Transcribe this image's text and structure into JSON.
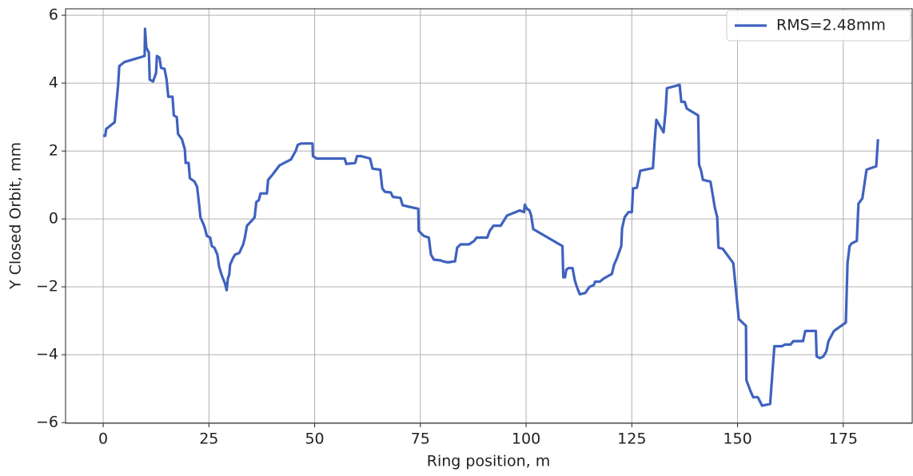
{
  "chart_data": {
    "type": "line",
    "xlabel": "Ring position, m",
    "ylabel": "Y Closed Orbit, mm",
    "xlim": [
      -8.9,
      191.3
    ],
    "ylim": [
      -6.02,
      6.19
    ],
    "xticks": [
      0,
      25,
      50,
      75,
      100,
      125,
      150,
      175
    ],
    "yticks": [
      {
        "value": -6,
        "label": "−6"
      },
      {
        "value": -4,
        "label": "−4"
      },
      {
        "value": -2,
        "label": "−2"
      },
      0,
      2,
      4,
      6
    ],
    "grid": true,
    "legend": "upper right",
    "x": [
      0,
      0.5,
      0.7,
      2.7,
      3.5,
      3.8,
      5,
      9.8,
      9.9,
      10.2,
      10.8,
      11,
      11.8,
      12.5,
      12.7,
      13.3,
      13.7,
      14.5,
      15,
      15.4,
      16.4,
      16.7,
      17.4,
      17.7,
      18.6,
      19.3,
      19.5,
      20.2,
      20.5,
      21.6,
      22.2,
      22.7,
      23,
      23.7,
      24,
      24.5,
      25.3,
      25.7,
      26.3,
      27,
      27.4,
      28,
      28.8,
      29.2,
      29.5,
      29.8,
      30,
      30.7,
      31.2,
      32.2,
      33.1,
      33.5,
      34,
      35.5,
      35.8,
      36.2,
      36.8,
      37.2,
      38.7,
      39,
      40,
      41.7,
      42.8,
      44.4,
      45.5,
      46,
      46.8,
      49.5,
      49.6,
      50.5,
      57.1,
      57.5,
      59.6,
      60,
      61,
      63.1,
      63.7,
      65.5,
      66,
      66.6,
      68,
      68.5,
      70.3,
      70.8,
      74.5,
      74.6,
      75,
      75.8,
      77,
      77.5,
      78.2,
      79.8,
      80.3,
      81.5,
      83.2,
      83.7,
      84.5,
      86.5,
      87.7,
      88.3,
      90.8,
      91.4,
      92.3,
      94,
      95.5,
      98.5,
      99.5,
      99.7,
      100.2,
      100.8,
      101.2,
      101.7,
      108.6,
      108.8,
      109.2,
      109.5,
      110,
      111,
      111.5,
      112,
      112.7,
      114,
      115,
      116,
      116.3,
      117.4,
      118.4,
      120.3,
      120.8,
      121.5,
      122.5,
      122.7,
      123.3,
      124.2,
      125,
      125.3,
      126.2,
      127,
      130,
      130.4,
      130.8,
      132.5,
      133,
      133.3,
      136.3,
      136.7,
      137.5,
      138,
      140.7,
      140.9,
      141.4,
      141.8,
      143.6,
      144.6,
      145.2,
      145.5,
      146.5,
      149,
      150.3,
      152,
      152.1,
      153,
      153.7,
      154.8,
      155.8,
      157.7,
      158.7,
      160.5,
      161.2,
      162.5,
      163.2,
      165.5,
      166,
      168.5,
      168.7,
      169.5,
      170.3,
      171,
      171.5,
      172.8,
      175.6,
      176,
      176.5,
      177,
      178.2,
      178.6,
      179.5,
      180.5,
      181.6,
      182.8,
      183.2
    ],
    "series": [
      {
        "name": "RMS=2.48mm",
        "color": "#3f62bf",
        "values": [
          2.45,
          2.45,
          2.65,
          2.85,
          3.9,
          4.5,
          4.62,
          4.8,
          5.6,
          5.05,
          4.9,
          4.1,
          4.05,
          4.3,
          4.8,
          4.75,
          4.45,
          4.42,
          4.1,
          3.6,
          3.6,
          3.05,
          3.0,
          2.5,
          2.35,
          2.05,
          1.65,
          1.65,
          1.2,
          1.1,
          0.95,
          0.4,
          0.05,
          -0.15,
          -0.25,
          -0.5,
          -0.55,
          -0.8,
          -0.85,
          -1.05,
          -1.4,
          -1.65,
          -1.9,
          -2.1,
          -1.75,
          -1.65,
          -1.35,
          -1.15,
          -1.05,
          -1.0,
          -0.75,
          -0.55,
          -0.2,
          0.0,
          0.05,
          0.5,
          0.55,
          0.75,
          0.75,
          1.15,
          1.3,
          1.58,
          1.65,
          1.75,
          2.0,
          2.18,
          2.22,
          2.22,
          1.85,
          1.78,
          1.78,
          1.62,
          1.65,
          1.85,
          1.85,
          1.78,
          1.48,
          1.45,
          0.9,
          0.8,
          0.78,
          0.65,
          0.62,
          0.4,
          0.3,
          -0.35,
          -0.4,
          -0.5,
          -0.55,
          -1.05,
          -1.2,
          -1.22,
          -1.25,
          -1.28,
          -1.25,
          -0.85,
          -0.75,
          -0.75,
          -0.65,
          -0.55,
          -0.55,
          -0.35,
          -0.2,
          -0.2,
          0.1,
          0.25,
          0.2,
          0.42,
          0.3,
          0.25,
          0.1,
          -0.3,
          -0.8,
          -1.72,
          -1.72,
          -1.5,
          -1.45,
          -1.45,
          -1.8,
          -2.0,
          -2.22,
          -2.18,
          -2.0,
          -1.95,
          -1.85,
          -1.85,
          -1.75,
          -1.62,
          -1.35,
          -1.15,
          -0.8,
          -0.28,
          0.05,
          0.2,
          0.2,
          0.9,
          0.92,
          1.42,
          1.5,
          2.3,
          2.92,
          2.55,
          3.2,
          3.85,
          3.95,
          3.45,
          3.45,
          3.25,
          3.05,
          1.6,
          1.42,
          1.15,
          1.1,
          0.35,
          0.05,
          -0.85,
          -0.88,
          -1.3,
          -2.95,
          -3.15,
          -4.75,
          -5.05,
          -5.25,
          -5.25,
          -5.5,
          -5.45,
          -3.75,
          -3.75,
          -3.7,
          -3.7,
          -3.6,
          -3.6,
          -3.3,
          -3.3,
          -4.05,
          -4.1,
          -4.05,
          -3.9,
          -3.6,
          -3.3,
          -3.05,
          -1.3,
          -0.8,
          -0.72,
          -0.65,
          0.45,
          0.6,
          1.45,
          1.5,
          1.55,
          2.35
        ]
      }
    ]
  }
}
